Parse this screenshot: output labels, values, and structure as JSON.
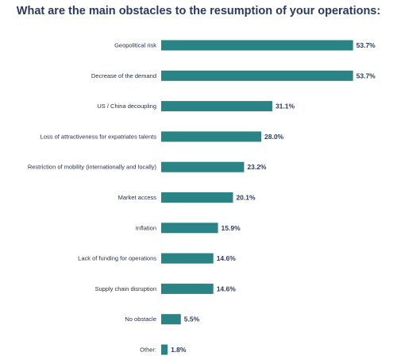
{
  "title": "What are the main obstacles to the resumption of your operations:",
  "colors": {
    "bar": "#2a8485",
    "title": "#2a3a5e",
    "text": "#1f2a44"
  },
  "chart_data": {
    "type": "bar",
    "orientation": "horizontal",
    "title": "What are the main obstacles to the resumption of your operations:",
    "xlabel": "",
    "ylabel": "",
    "unit": "%",
    "grid": false,
    "categories": [
      "Geopolitical risk",
      "Decrease of the demand",
      "US / China decoupling",
      "Loss of attractiveness for expatriates talents",
      "Restriction of mobility (internationally and locally)",
      "Market access",
      "Inflation",
      "Lack of funding for operations",
      "Supply chain disruption",
      "No obstacle",
      "Other:"
    ],
    "values": [
      53.7,
      53.7,
      31.1,
      28.0,
      23.2,
      20.1,
      15.9,
      14.6,
      14.6,
      5.5,
      1.8
    ],
    "value_labels": [
      "53.7%",
      "53.7%",
      "31.1%",
      "28.0%",
      "23.2%",
      "20.1%",
      "15.9%",
      "14.6%",
      "14.6%",
      "5.5%",
      "1.8%"
    ]
  }
}
